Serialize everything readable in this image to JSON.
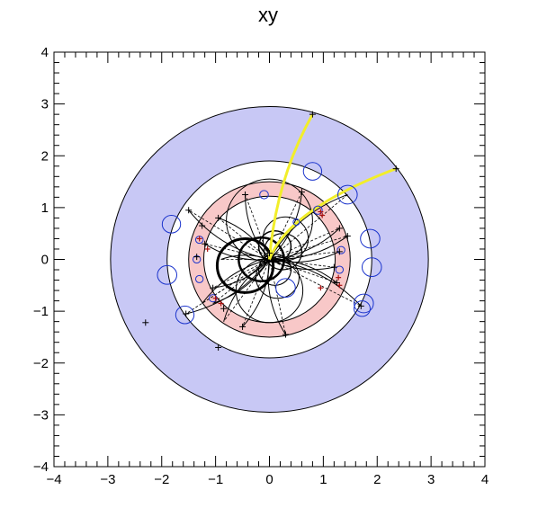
{
  "chart_data": {
    "type": "scatter",
    "title": "xy",
    "xlabel": "",
    "ylabel": "",
    "xlim": [
      -4,
      4
    ],
    "ylim": [
      -4,
      4
    ],
    "x_ticks": [
      "−4",
      "−3",
      "−2",
      "−1",
      "0",
      "1",
      "2",
      "3",
      "4"
    ],
    "y_ticks": [
      "−4",
      "−3",
      "−2",
      "−1",
      "0",
      "1",
      "2",
      "3",
      "4"
    ],
    "grid": false,
    "colors": {
      "frame_bg": "#c8c8f5",
      "inner_ring": "#f8c8c8",
      "track": "#000000",
      "highlight_track": "#f2ee2a",
      "hit_circle": "#1a33cc",
      "hit_marker": "#aa1111"
    },
    "rings": [
      {
        "r": 2.95,
        "fill": "#c8c8f5"
      },
      {
        "r": 1.9,
        "fill": "#ffffff"
      },
      {
        "r": 1.5,
        "fill": "#f8c8c8"
      },
      {
        "r": 1.22,
        "fill": "#ffffff"
      }
    ],
    "track_endpoints": [
      [
        -1.55,
        -1.05
      ],
      [
        -0.95,
        0.8
      ],
      [
        -1.5,
        0.95
      ],
      [
        -0.85,
        -1.2
      ],
      [
        -1.05,
        -0.55
      ],
      [
        -0.9,
        0.0
      ],
      [
        -0.5,
        -1.3
      ],
      [
        0.3,
        -1.45
      ],
      [
        1.25,
        -0.45
      ],
      [
        1.3,
        0.6
      ],
      [
        1.45,
        1.25
      ],
      [
        0.6,
        1.3
      ],
      [
        -1.05,
        -0.85
      ],
      [
        -1.25,
        -0.85
      ],
      [
        1.7,
        -0.9
      ],
      [
        1.3,
        0.15
      ],
      [
        -0.45,
        1.25
      ],
      [
        1.45,
        0.45
      ],
      [
        -1.2,
        0.3
      ],
      [
        1.2,
        -0.15
      ]
    ],
    "highlight_tracks": [
      {
        "end": [
          0.8,
          2.8
        ]
      },
      {
        "end": [
          2.35,
          1.75
        ]
      }
    ],
    "curl_circles": [
      {
        "cx": -0.45,
        "cy": -0.12,
        "r": 0.52,
        "w": 3
      },
      {
        "cx": -0.15,
        "cy": 0.0,
        "r": 0.42,
        "w": 2.5
      },
      {
        "cx": 0.1,
        "cy": 0.25,
        "r": 0.3,
        "w": 1.5
      },
      {
        "cx": 0.25,
        "cy": 0.15,
        "r": 0.35,
        "w": 1.2
      },
      {
        "cx": 0.1,
        "cy": -0.2,
        "r": 0.3,
        "w": 1.2
      },
      {
        "cx": 0.15,
        "cy": -0.35,
        "r": 0.4,
        "w": 1.0
      },
      {
        "cx": 0.3,
        "cy": 0.4,
        "r": 0.42,
        "w": 1.0
      },
      {
        "cx": 0.0,
        "cy": 0.75,
        "r": 0.8,
        "w": 1.0
      },
      {
        "cx": 0.0,
        "cy": -0.6,
        "r": 0.62,
        "w": 1.0
      }
    ],
    "hit_circles": [
      {
        "x": 0.8,
        "y": 1.7,
        "r": 0.17
      },
      {
        "x": 1.45,
        "y": 1.25,
        "r": 0.18
      },
      {
        "x": 1.87,
        "y": 0.4,
        "r": 0.18
      },
      {
        "x": 1.9,
        "y": -0.15,
        "r": 0.18
      },
      {
        "x": 1.75,
        "y": -0.85,
        "r": 0.18
      },
      {
        "x": 1.72,
        "y": -0.95,
        "r": 0.15
      },
      {
        "x": -1.82,
        "y": 0.68,
        "r": 0.17
      },
      {
        "x": -1.9,
        "y": -0.3,
        "r": 0.18
      },
      {
        "x": -1.57,
        "y": -1.07,
        "r": 0.17
      },
      {
        "x": 0.3,
        "y": -0.55,
        "r": 0.18
      },
      {
        "x": -0.1,
        "y": 1.25,
        "r": 0.08
      },
      {
        "x": 0.5,
        "y": 0.72,
        "r": 0.06
      },
      {
        "x": 0.9,
        "y": 0.95,
        "r": 0.08
      },
      {
        "x": 1.33,
        "y": 0.18,
        "r": 0.07
      },
      {
        "x": 1.3,
        "y": -0.2,
        "r": 0.07
      },
      {
        "x": -1.3,
        "y": 0.38,
        "r": 0.07
      },
      {
        "x": -1.35,
        "y": 0.0,
        "r": 0.07
      },
      {
        "x": -1.3,
        "y": -0.38,
        "r": 0.07
      },
      {
        "x": -1.05,
        "y": -0.75,
        "r": 0.07
      }
    ],
    "markers": [
      [
        -2.3,
        -1.22
      ],
      [
        -1.55,
        -1.05
      ],
      [
        -0.95,
        -1.7
      ],
      [
        -1.5,
        0.95
      ],
      [
        -1.25,
        0.65
      ],
      [
        -1.35,
        0.05
      ],
      [
        -0.85,
        -0.95
      ],
      [
        -0.5,
        -1.3
      ],
      [
        0.3,
        -1.45
      ],
      [
        1.25,
        -0.45
      ],
      [
        1.3,
        0.6
      ],
      [
        0.6,
        1.3
      ],
      [
        0.8,
        2.8
      ],
      [
        2.35,
        1.75
      ],
      [
        1.7,
        -0.9
      ],
      [
        -1.05,
        -0.55
      ],
      [
        -0.45,
        1.25
      ],
      [
        0.0,
        0.12
      ],
      [
        1.2,
        -0.15
      ],
      [
        1.45,
        0.45
      ],
      [
        -0.95,
        0.8
      ],
      [
        -1.2,
        0.3
      ],
      [
        1.3,
        0.15
      ]
    ],
    "red_markers": [
      [
        -1.3,
        0.4
      ],
      [
        -1.15,
        0.2
      ],
      [
        1.28,
        -0.35
      ],
      [
        1.3,
        -0.5
      ],
      [
        -1.0,
        -0.75
      ],
      [
        -0.9,
        -0.85
      ],
      [
        0.95,
        0.92
      ],
      [
        0.98,
        0.85
      ],
      [
        0.95,
        -0.55
      ]
    ]
  }
}
